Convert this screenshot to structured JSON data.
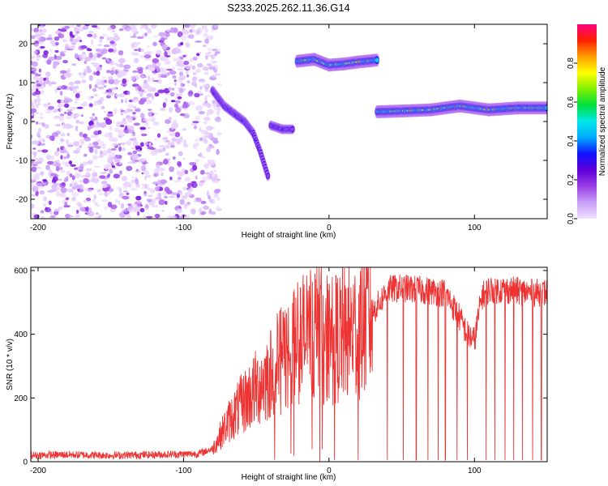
{
  "chart_data": [
    {
      "type": "heatmap",
      "title": "S233.2025.262.11.36.G14",
      "xlabel": "Height of straight line (km)",
      "ylabel": "Frequency (Hz)",
      "xlim": [
        -205,
        150
      ],
      "ylim": [
        -25,
        25
      ],
      "x_ticks": [
        -200,
        -100,
        0,
        100
      ],
      "y_ticks": [
        -20,
        -10,
        0,
        10,
        20
      ],
      "colorbar": {
        "label": "Normalized spectral amplitude",
        "range": [
          0.0,
          1.0
        ],
        "ticks": [
          0.0,
          0.2,
          0.4,
          0.6,
          0.8
        ],
        "tick_labels": [
          "0.0",
          "0.2",
          "0.4",
          "0.6",
          "0.8"
        ],
        "colors": [
          "#f2e0ff",
          "#c9a0f8",
          "#9b3ee6",
          "#6000d8",
          "#1010ff",
          "#00a8ff",
          "#00e8e8",
          "#00e040",
          "#80f000",
          "#ffff00",
          "#ffa000",
          "#ff2000",
          "#ff0080"
        ]
      },
      "features": [
        {
          "name": "noise-region",
          "x_range": [
            -205,
            -85
          ],
          "freq_range": [
            -25,
            25
          ],
          "amplitude": 0.1
        },
        {
          "name": "descending-track",
          "points": [
            [
              -80,
              8
            ],
            [
              -72,
              4
            ],
            [
              -65,
              2
            ],
            [
              -58,
              0
            ],
            [
              -52,
              -3
            ],
            [
              -47,
              -8
            ],
            [
              -42,
              -14
            ]
          ],
          "amplitude": 0.3
        },
        {
          "name": "short-segment",
          "points": [
            [
              -40,
              -1
            ],
            [
              -32,
              -2
            ],
            [
              -25,
              -2
            ]
          ],
          "amplitude": 0.3
        },
        {
          "name": "upper-band",
          "points": [
            [
              -22,
              15.5
            ],
            [
              -10,
              16
            ],
            [
              0,
              14.5
            ],
            [
              10,
              14.8
            ],
            [
              20,
              15.3
            ],
            [
              33,
              15.8
            ]
          ],
          "amplitude": 0.85
        },
        {
          "name": "lower-band",
          "points": [
            [
              33,
              2.5
            ],
            [
              50,
              2.7
            ],
            [
              70,
              3
            ],
            [
              90,
              4
            ],
            [
              110,
              3
            ],
            [
              130,
              3.5
            ],
            [
              150,
              3.5
            ]
          ],
          "amplitude": 0.85
        }
      ]
    },
    {
      "type": "line",
      "xlabel": "Height of straight line (km)",
      "ylabel": "SNR (10 * v/v)",
      "xlim": [
        -205,
        150
      ],
      "ylim": [
        0,
        610
      ],
      "x_ticks": [
        -200,
        -100,
        0,
        100
      ],
      "y_ticks": [
        0,
        200,
        400,
        600
      ],
      "color": "#ee3333",
      "series": [
        {
          "name": "SNR",
          "x": [
            -205,
            -180,
            -150,
            -120,
            -90,
            -80,
            -70,
            -60,
            -50,
            -40,
            -30,
            -20,
            -10,
            0,
            10,
            20,
            30,
            35,
            40,
            50,
            60,
            70,
            80,
            90,
            95,
            100,
            105,
            110,
            120,
            130,
            140,
            150
          ],
          "y": [
            20,
            22,
            20,
            22,
            25,
            40,
            120,
            180,
            230,
            280,
            330,
            380,
            420,
            380,
            400,
            420,
            470,
            500,
            540,
            545,
            540,
            535,
            530,
            450,
            400,
            380,
            520,
            540,
            540,
            535,
            530,
            530
          ],
          "dropouts": [
            20,
            40,
            51,
            60,
            68,
            75,
            80,
            88,
            95,
            108,
            114,
            121,
            127,
            133,
            140,
            146
          ]
        }
      ]
    }
  ]
}
